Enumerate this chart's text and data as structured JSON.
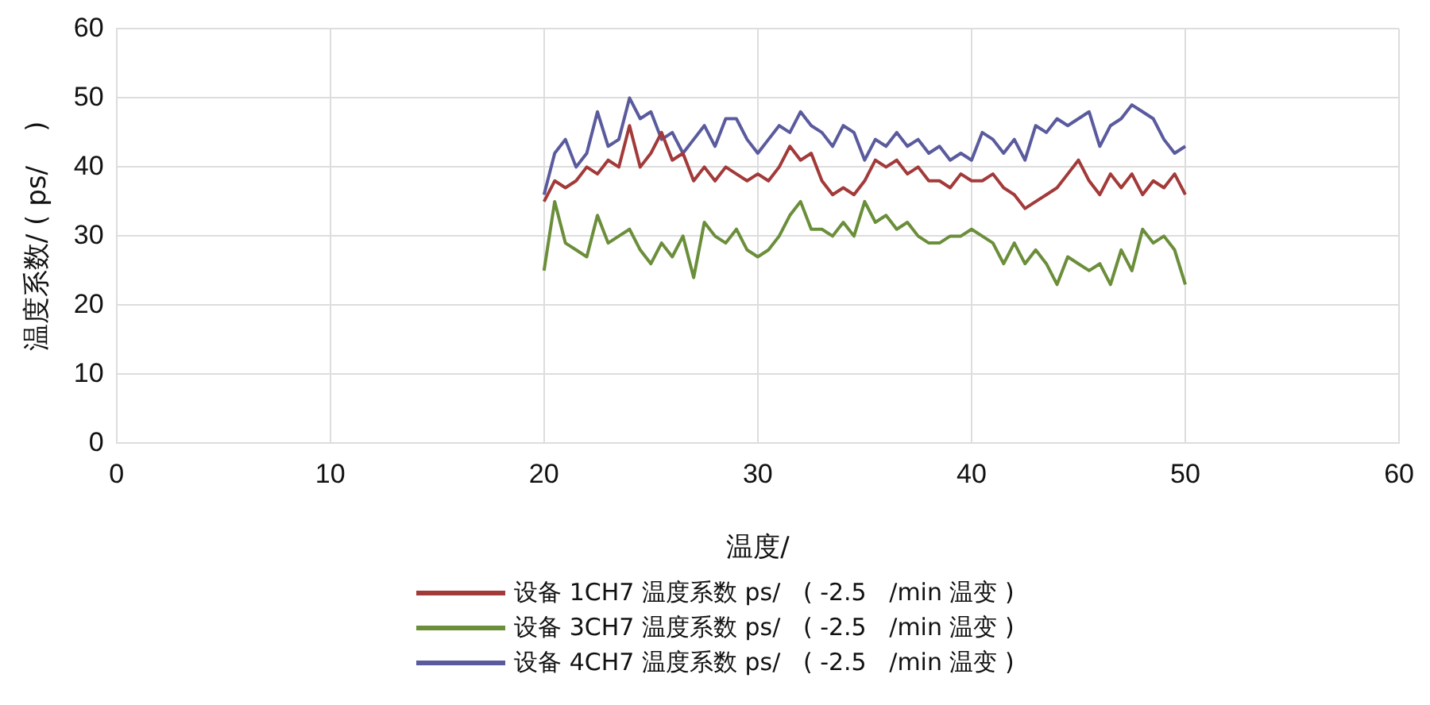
{
  "chart_data": {
    "type": "line",
    "xlabel": "温度/",
    "ylabel": "温度系数/ ( ps/    )",
    "xlim": [
      0,
      60
    ],
    "xticks": [
      0,
      10,
      20,
      30,
      40,
      50,
      60
    ],
    "ylim": [
      0,
      60
    ],
    "yticks": [
      0,
      10,
      20,
      30,
      40,
      50,
      60
    ],
    "grid": true,
    "legend": "bottom",
    "marker": "none",
    "x": [
      20,
      20.5,
      21,
      21.5,
      22,
      22.5,
      23,
      23.5,
      24,
      24.5,
      25,
      25.5,
      26,
      26.5,
      27,
      27.5,
      28,
      28.5,
      29,
      29.5,
      30,
      30.5,
      31,
      31.5,
      32,
      32.5,
      33,
      33.5,
      34,
      34.5,
      35,
      35.5,
      36,
      36.5,
      37,
      37.5,
      38,
      38.5,
      39,
      39.5,
      40,
      40.5,
      41,
      41.5,
      42,
      42.5,
      43,
      43.5,
      44,
      44.5,
      45,
      45.5,
      46,
      46.5,
      47,
      47.5,
      48,
      48.5,
      49,
      49.5,
      50
    ],
    "series": [
      {
        "name": "设备 1CH7 温度系数 ps/   ( -2.5   /min 温变 )",
        "color": "#a33a3a",
        "values": [
          35,
          38,
          37,
          38,
          40,
          39,
          41,
          40,
          46,
          40,
          42,
          45,
          41,
          42,
          38,
          40,
          38,
          40,
          39,
          38,
          39,
          38,
          40,
          43,
          41,
          42,
          38,
          36,
          37,
          36,
          38,
          41,
          40,
          41,
          39,
          40,
          38,
          38,
          37,
          39,
          38,
          38,
          39,
          37,
          36,
          34,
          35,
          36,
          37,
          39,
          41,
          38,
          36,
          39,
          37,
          39,
          36,
          38,
          37,
          39,
          36
        ]
      },
      {
        "name": "设备 3CH7 温度系数 ps/   ( -2.5   /min 温变 )",
        "color": "#6b8e3a",
        "values": [
          25,
          35,
          29,
          28,
          27,
          33,
          29,
          30,
          31,
          28,
          26,
          29,
          27,
          30,
          24,
          32,
          30,
          29,
          31,
          28,
          27,
          28,
          30,
          33,
          35,
          31,
          31,
          30,
          32,
          30,
          35,
          32,
          33,
          31,
          32,
          30,
          29,
          29,
          30,
          30,
          31,
          30,
          29,
          26,
          29,
          26,
          28,
          26,
          23,
          27,
          26,
          25,
          26,
          23,
          28,
          25,
          31,
          29,
          30,
          28,
          23
        ]
      },
      {
        "name": "设备 4CH7 温度系数 ps/   ( -2.5   /min 温变 )",
        "color": "#5a5a9e",
        "values": [
          36,
          42,
          44,
          40,
          42,
          48,
          43,
          44,
          50,
          47,
          48,
          44,
          45,
          42,
          44,
          46,
          43,
          47,
          47,
          44,
          42,
          44,
          46,
          45,
          48,
          46,
          45,
          43,
          46,
          45,
          41,
          44,
          43,
          45,
          43,
          44,
          42,
          43,
          41,
          42,
          41,
          45,
          44,
          42,
          44,
          41,
          46,
          45,
          47,
          46,
          47,
          48,
          43,
          46,
          47,
          49,
          48,
          47,
          44,
          42,
          43
        ]
      }
    ]
  }
}
